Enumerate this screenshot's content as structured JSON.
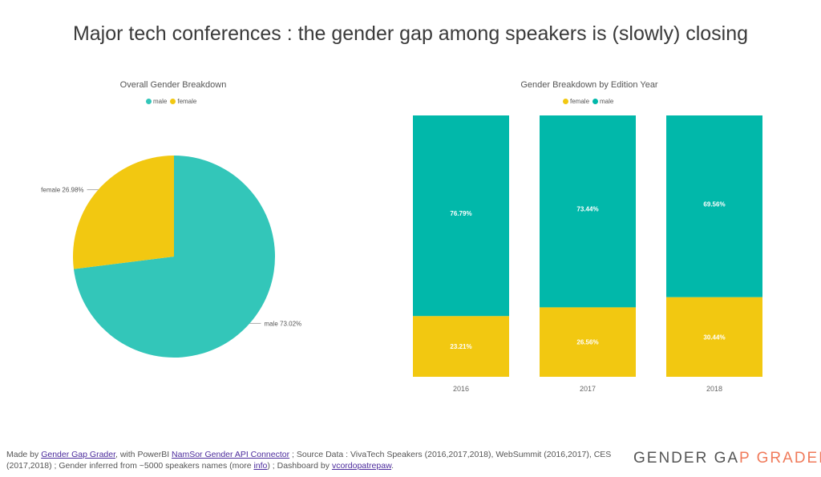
{
  "title": "Major tech conferences : the gender gap among speakers is (slowly) closing",
  "colors": {
    "male": "#33c6b9",
    "female": "#f2c811",
    "male_bar": "#01b8aa"
  },
  "chart_data": [
    {
      "type": "pie",
      "title": "Overall Gender Breakdown",
      "legend": [
        "male",
        "female"
      ],
      "legend_placement": "top-center",
      "slices": [
        {
          "label": "male",
          "value": 73.02,
          "display": "male 73.02%"
        },
        {
          "label": "female",
          "value": 26.98,
          "display": "female 26.98%"
        }
      ]
    },
    {
      "type": "bar",
      "stacked": "100%",
      "title": "Gender Breakdown by Edition Year",
      "legend": [
        "female",
        "male"
      ],
      "legend_placement": "top-center",
      "categories": [
        "2016",
        "2017",
        "2018"
      ],
      "series": [
        {
          "name": "female",
          "values": [
            23.21,
            26.56,
            30.44
          ],
          "labels": [
            "23.21%",
            "26.56%",
            "30.44%"
          ]
        },
        {
          "name": "male",
          "values": [
            76.79,
            73.44,
            69.56
          ],
          "labels": [
            "76.79%",
            "73.44%",
            "69.56%"
          ]
        }
      ]
    }
  ],
  "footer": {
    "t1": "Made by ",
    "link1": "Gender Gap Grader",
    "t2": ", with PowerBI ",
    "link2": "NamSor Gender API Connector",
    "t3": " ; Source Data : VivaTech Speakers (2016,2017,2018), WebSummit (2016,2017), CES (2017,2018) ; Gender inferred from ~5000 speakers names (more ",
    "link3": "info",
    "t4": ") ; Dashboard by ",
    "link4": "vcordopatrepaw",
    "t5": "."
  },
  "brand": {
    "part1": "GENDER GA",
    "part2": "P GRADER",
    "color1": "#555555",
    "color2": "#f07a5a"
  }
}
